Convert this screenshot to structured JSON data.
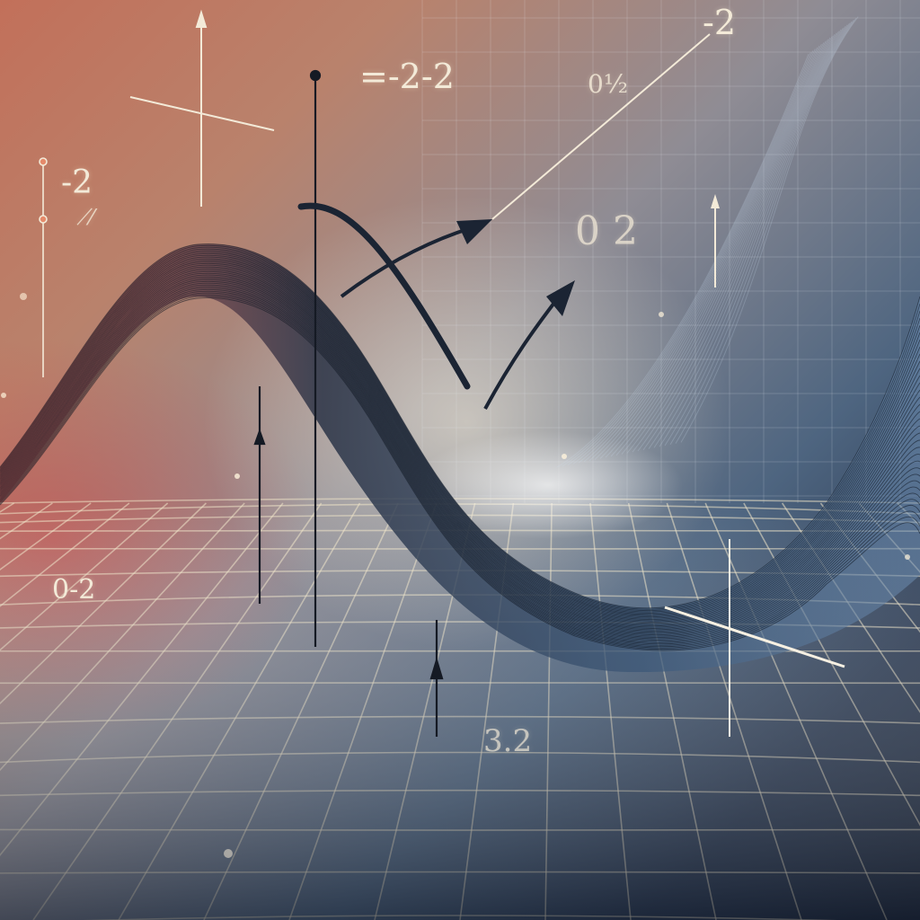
{
  "labels": {
    "top_right": "-2",
    "top_center": "=-2-2",
    "upper_mid": "0½",
    "left": "-2",
    "left_small": "⁄̸",
    "center_right": "0 2",
    "lower_left": "0-2",
    "bottom": "3.2"
  },
  "colors": {
    "warm_glow": "#fff6e1",
    "red_haze": "#cd4646",
    "deep_blue": "#1d2739",
    "grid_line": "#f0e6c8",
    "wave_dark": "#1b2433"
  }
}
